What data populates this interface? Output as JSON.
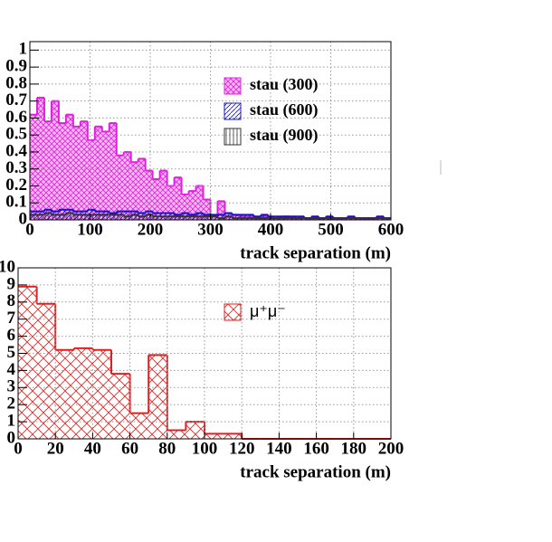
{
  "chart_data": [
    {
      "type": "histogram",
      "xlabel": "track separation (m)",
      "xlim": [
        0,
        600
      ],
      "xticks": [
        0,
        100,
        200,
        300,
        400,
        500,
        600
      ],
      "ylim": [
        0,
        1.05
      ],
      "yticks": [
        0,
        0.1,
        0.2,
        0.3,
        0.4,
        0.5,
        0.6,
        0.7,
        0.8,
        0.9,
        1
      ],
      "grid": true,
      "legend": "upper right",
      "bins": [
        0,
        12,
        24,
        36,
        48,
        60,
        72,
        84,
        96,
        108,
        120,
        132,
        144,
        156,
        168,
        180,
        192,
        204,
        216,
        228,
        240,
        252,
        264,
        276,
        288,
        300,
        312,
        324,
        336,
        348,
        360,
        372,
        384,
        396,
        408,
        420,
        432,
        444,
        456,
        468,
        480,
        492,
        504,
        516,
        528,
        540,
        552,
        564,
        576,
        588,
        600
      ],
      "series": [
        {
          "name": "stau (300)",
          "color": "#e020e0",
          "fill_style": "cross",
          "values": [
            0.62,
            0.72,
            0.58,
            0.7,
            0.57,
            0.62,
            0.55,
            0.58,
            0.47,
            0.55,
            0.52,
            0.57,
            0.38,
            0.4,
            0.34,
            0.36,
            0.29,
            0.24,
            0.29,
            0.2,
            0.25,
            0.15,
            0.17,
            0.2,
            0.12,
            0.02,
            0.11,
            0.04,
            0.03,
            0.02,
            0.02,
            0.01,
            0.02,
            0.01,
            0.01,
            0.02,
            0.01,
            0.01,
            0.01,
            0.01,
            0.01,
            0.01,
            0.01,
            0.01,
            0.01,
            0.01,
            0.01,
            0.01,
            0.01,
            0.01
          ]
        },
        {
          "name": "stau (600)",
          "color": "#1010d0",
          "fill_style": "diagonal",
          "values": [
            0.05,
            0.05,
            0.06,
            0.05,
            0.06,
            0.06,
            0.05,
            0.05,
            0.06,
            0.05,
            0.05,
            0.04,
            0.05,
            0.05,
            0.05,
            0.04,
            0.05,
            0.04,
            0.04,
            0.04,
            0.03,
            0.04,
            0.03,
            0.04,
            0.03,
            0.03,
            0.03,
            0.04,
            0.03,
            0.03,
            0.03,
            0.02,
            0.03,
            0.02,
            0.02,
            0.02,
            0.02,
            0.02,
            0.01,
            0.02,
            0.01,
            0.02,
            0.01,
            0.01,
            0.02,
            0.01,
            0.01,
            0.01,
            0.02,
            0.01
          ]
        },
        {
          "name": "stau (900)",
          "color": "#333333",
          "fill_style": "vertical",
          "values": [
            0.03,
            0.03,
            0.04,
            0.03,
            0.03,
            0.04,
            0.03,
            0.03,
            0.03,
            0.03,
            0.03,
            0.03,
            0.03,
            0.02,
            0.03,
            0.02,
            0.03,
            0.02,
            0.02,
            0.02,
            0.02,
            0.02,
            0.02,
            0.02,
            0.02,
            0.02,
            0.01,
            0.02,
            0.01,
            0.01,
            0.01,
            0.01,
            0.01,
            0.01,
            0.01,
            0.01,
            0.01,
            0.01,
            0.01,
            0.01,
            0.01,
            0.01,
            0.01,
            0.01,
            0.01,
            0.01,
            0.01,
            0.01,
            0.01,
            0.01
          ]
        }
      ]
    },
    {
      "type": "histogram",
      "xlabel": "track separation (m)",
      "xlim": [
        0,
        200
      ],
      "xticks": [
        0,
        20,
        40,
        60,
        80,
        100,
        120,
        140,
        160,
        180,
        200
      ],
      "ylim": [
        0,
        10
      ],
      "yticks": [
        0,
        1,
        2,
        3,
        4,
        5,
        6,
        7,
        8,
        9,
        10
      ],
      "grid": true,
      "legend": "upper right",
      "bins": [
        0,
        10,
        20,
        30,
        40,
        50,
        60,
        70,
        80,
        90,
        100,
        110,
        120,
        130,
        140,
        150,
        160,
        170,
        180,
        190,
        200
      ],
      "series": [
        {
          "name": "μ⁺μ⁻",
          "color": "#e02020",
          "fill_style": "cross",
          "values": [
            8.9,
            7.9,
            5.2,
            5.3,
            5.2,
            3.8,
            1.5,
            4.9,
            0.5,
            1.0,
            0.3,
            0.3,
            0,
            0,
            0,
            0,
            0,
            0,
            0,
            0
          ]
        }
      ]
    }
  ]
}
